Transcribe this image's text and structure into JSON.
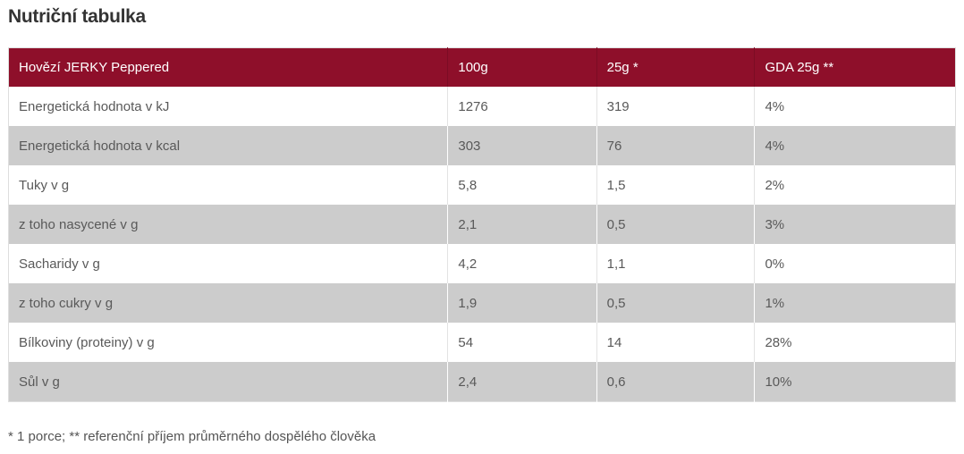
{
  "page": {
    "title": "Nutriční tabulka",
    "footnote": "* 1 porce; ** referenční příjem průměrného dospělého člověka"
  },
  "table": {
    "header": {
      "product": "Hovězí JERKY Peppered",
      "col_100g": "100g",
      "col_25g": "25g *",
      "col_gda": "GDA 25g **"
    },
    "rows": [
      {
        "label": "Energetická hodnota v kJ",
        "per100g": "1276",
        "per25g": "319",
        "gda": "4%"
      },
      {
        "label": "Energetická hodnota v kcal",
        "per100g": "303",
        "per25g": "76",
        "gda": "4%"
      },
      {
        "label": "Tuky v g",
        "per100g": "5,8",
        "per25g": "1,5",
        "gda": "2%"
      },
      {
        "label": "z toho nasycené v g",
        "per100g": "2,1",
        "per25g": "0,5",
        "gda": "3%"
      },
      {
        "label": "Sacharidy v g",
        "per100g": "4,2",
        "per25g": "1,1",
        "gda": "0%"
      },
      {
        "label": "z toho cukry v g",
        "per100g": "1,9",
        "per25g": "0,5",
        "gda": "1%"
      },
      {
        "label": "Bílkoviny (proteiny) v g",
        "per100g": "54",
        "per25g": "14",
        "gda": "28%"
      },
      {
        "label": "Sůl v g",
        "per100g": "2,4",
        "per25g": "0,6",
        "gda": "10%"
      }
    ]
  },
  "colors": {
    "header_bg": "#8E0F2A",
    "header_divider": "#7C0C24",
    "header_text": "#FFFFFF",
    "row_alt_bg": "#CCCCCC",
    "body_text": "#595959",
    "title_text": "#333333",
    "footnote_text": "#555555"
  }
}
